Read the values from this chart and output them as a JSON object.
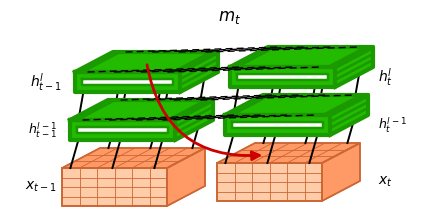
{
  "green": "#22bb00",
  "green_dark": "#1a9900",
  "orange_face": "#ffccaa",
  "orange_top": "#ff9966",
  "orange_edge": "#cc6633",
  "red_arrow": "#cc0000",
  "black": "#000000",
  "white": "#ffffff",
  "bg": "#ffffff",
  "lw_green": 3.0,
  "lw_orange": 1.2,
  "lw_conn": 1.4,
  "lw_dash": 1.1
}
